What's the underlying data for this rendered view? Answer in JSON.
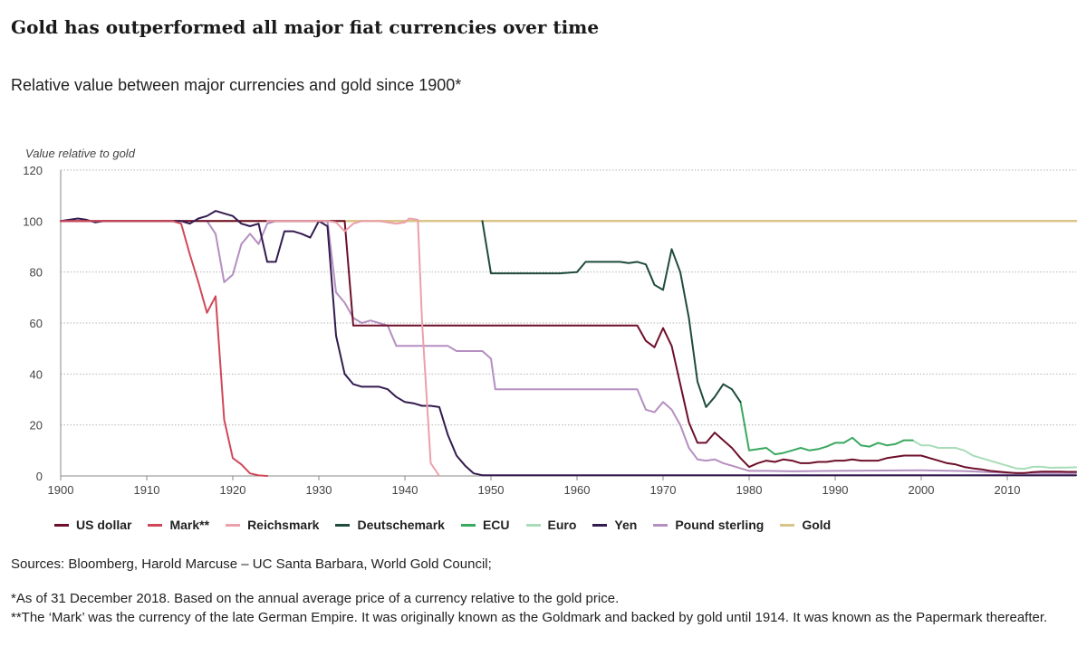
{
  "header": {
    "title": "Gold has outperformed all major fiat currencies over time",
    "subtitle": "Relative value between major currencies and gold since 1900*"
  },
  "footer": {
    "sources": "Sources: Bloomberg, Harold Marcuse – UC Santa Barbara, World Gold Council;",
    "note1": "*As of 31 December 2018. Based on the annual average price of a currency relative to the gold price.",
    "note2": "**The ‘Mark’ was the currency of the late German Empire. It was originally known as the Goldmark and backed by gold until 1914. It was known as the Papermark thereafter."
  },
  "chart_data": {
    "type": "line",
    "title": "Gold has outperformed all major fiat currencies over time",
    "subtitle": "Relative value between major currencies and gold since 1900*",
    "ylabel": "Value relative to gold",
    "xlabel": "",
    "xlim": [
      1900,
      2018
    ],
    "ylim": [
      0,
      120
    ],
    "xticks": [
      1900,
      1910,
      1920,
      1930,
      1940,
      1950,
      1960,
      1970,
      1980,
      1990,
      2000,
      2010
    ],
    "yticks": [
      0,
      20,
      40,
      60,
      80,
      100,
      120
    ],
    "grid": "horizontal dotted",
    "legend_position": "bottom",
    "series": [
      {
        "name": "Gold",
        "color": "#d9c48a",
        "points": [
          [
            1900,
            100
          ],
          [
            2018,
            100
          ]
        ]
      },
      {
        "name": "Pound sterling",
        "color": "#b48fc0",
        "points": [
          [
            1900,
            100
          ],
          [
            1914,
            100
          ],
          [
            1917,
            100
          ],
          [
            1918,
            95
          ],
          [
            1919,
            76
          ],
          [
            1920,
            79
          ],
          [
            1921,
            91
          ],
          [
            1922,
            95
          ],
          [
            1923,
            91
          ],
          [
            1924,
            99
          ],
          [
            1925,
            100
          ],
          [
            1931,
            100
          ],
          [
            1932,
            72
          ],
          [
            1933,
            68
          ],
          [
            1934,
            62
          ],
          [
            1935,
            60
          ],
          [
            1936,
            61
          ],
          [
            1937,
            60
          ],
          [
            1938,
            59
          ],
          [
            1939,
            51
          ],
          [
            1945,
            51
          ],
          [
            1946,
            49
          ],
          [
            1949,
            49
          ],
          [
            1950,
            46
          ],
          [
            1950.5,
            34
          ],
          [
            1966,
            34
          ],
          [
            1967,
            34
          ],
          [
            1968,
            26
          ],
          [
            1969,
            25
          ],
          [
            1970,
            29
          ],
          [
            1971,
            26
          ],
          [
            1972,
            20
          ],
          [
            1973,
            11
          ],
          [
            1974,
            6.5
          ],
          [
            1975,
            6
          ],
          [
            1976,
            6.5
          ],
          [
            1977,
            5
          ],
          [
            1978,
            4
          ],
          [
            1979,
            3
          ],
          [
            1980,
            2
          ],
          [
            1982,
            2
          ],
          [
            1985,
            1.8
          ],
          [
            1990,
            2
          ],
          [
            2000,
            2.2
          ],
          [
            2005,
            1.9
          ],
          [
            2010,
            1.2
          ],
          [
            2018,
            1.1
          ]
        ]
      },
      {
        "name": "Euro",
        "color": "#a8dcb8",
        "points": [
          [
            1999,
            14
          ],
          [
            2000,
            12
          ],
          [
            2001,
            12
          ],
          [
            2002,
            11
          ],
          [
            2003,
            11
          ],
          [
            2004,
            11
          ],
          [
            2005,
            10
          ],
          [
            2006,
            8
          ],
          [
            2007,
            7
          ],
          [
            2008,
            6
          ],
          [
            2009,
            5
          ],
          [
            2010,
            4
          ],
          [
            2011,
            3
          ],
          [
            2012,
            2.8
          ],
          [
            2013,
            3.6
          ],
          [
            2014,
            3.6
          ],
          [
            2015,
            3.2
          ],
          [
            2016,
            3.3
          ],
          [
            2017,
            3.3
          ],
          [
            2018,
            3.4
          ]
        ]
      },
      {
        "name": "ECU",
        "color": "#3aa860",
        "points": [
          [
            1979,
            29
          ],
          [
            1980,
            10
          ],
          [
            1982,
            11
          ],
          [
            1983,
            8.5
          ],
          [
            1984,
            9
          ],
          [
            1985,
            10
          ],
          [
            1986,
            11
          ],
          [
            1987,
            10
          ],
          [
            1988,
            10.5
          ],
          [
            1989,
            11.5
          ],
          [
            1990,
            13
          ],
          [
            1991,
            13
          ],
          [
            1992,
            15
          ],
          [
            1993,
            12
          ],
          [
            1994,
            11.5
          ],
          [
            1995,
            13
          ],
          [
            1996,
            12
          ],
          [
            1997,
            12.5
          ],
          [
            1998,
            14
          ],
          [
            1999,
            14
          ]
        ]
      },
      {
        "name": "Deutschemark",
        "color": "#1e4b3c",
        "points": [
          [
            1949,
            100
          ],
          [
            1950,
            79.5
          ],
          [
            1958,
            79.5
          ],
          [
            1960,
            80
          ],
          [
            1961,
            84
          ],
          [
            1963,
            84
          ],
          [
            1965,
            84
          ],
          [
            1966,
            83.5
          ],
          [
            1967,
            84
          ],
          [
            1968,
            83
          ],
          [
            1969,
            75
          ],
          [
            1970,
            73
          ],
          [
            1971,
            89
          ],
          [
            1972,
            80
          ],
          [
            1973,
            62
          ],
          [
            1974,
            37
          ],
          [
            1975,
            27
          ],
          [
            1976,
            31
          ],
          [
            1977,
            36
          ],
          [
            1978,
            34
          ],
          [
            1979,
            29
          ]
        ]
      },
      {
        "name": "US dollar",
        "color": "#6e0f2a",
        "points": [
          [
            1900,
            100
          ],
          [
            1933,
            100
          ],
          [
            1934,
            59
          ],
          [
            1967,
            59
          ],
          [
            1968,
            53
          ],
          [
            1969,
            50.5
          ],
          [
            1970,
            58
          ],
          [
            1971,
            51
          ],
          [
            1972,
            36
          ],
          [
            1973,
            21
          ],
          [
            1974,
            13
          ],
          [
            1975,
            13
          ],
          [
            1976,
            17
          ],
          [
            1977,
            14
          ],
          [
            1978,
            11
          ],
          [
            1979,
            7
          ],
          [
            1980,
            3.5
          ],
          [
            1981,
            5
          ],
          [
            1982,
            6
          ],
          [
            1983,
            5.5
          ],
          [
            1984,
            6.5
          ],
          [
            1985,
            6
          ],
          [
            1986,
            5
          ],
          [
            1987,
            5
          ],
          [
            1988,
            5.5
          ],
          [
            1989,
            5.5
          ],
          [
            1990,
            6
          ],
          [
            1991,
            6
          ],
          [
            1992,
            6.5
          ],
          [
            1993,
            6
          ],
          [
            1994,
            6
          ],
          [
            1995,
            6
          ],
          [
            1996,
            7
          ],
          [
            1997,
            7.5
          ],
          [
            1998,
            8
          ],
          [
            1999,
            8
          ],
          [
            2000,
            8
          ],
          [
            2001,
            7
          ],
          [
            2002,
            6
          ],
          [
            2003,
            5
          ],
          [
            2004,
            4.5
          ],
          [
            2005,
            3.5
          ],
          [
            2006,
            3
          ],
          [
            2007,
            2.6
          ],
          [
            2008,
            2
          ],
          [
            2009,
            1.7
          ],
          [
            2010,
            1.4
          ],
          [
            2011,
            1.1
          ],
          [
            2012,
            1.1
          ],
          [
            2013,
            1.5
          ],
          [
            2014,
            1.7
          ],
          [
            2015,
            1.7
          ],
          [
            2016,
            1.7
          ],
          [
            2017,
            1.6
          ],
          [
            2018,
            1.6
          ]
        ]
      },
      {
        "name": "Yen",
        "color": "#341a4f",
        "points": [
          [
            1900,
            100
          ],
          [
            1901,
            100.5
          ],
          [
            1902,
            101
          ],
          [
            1903,
            100.5
          ],
          [
            1904,
            99.5
          ],
          [
            1905,
            100
          ],
          [
            1910,
            100
          ],
          [
            1913,
            100
          ],
          [
            1914,
            100
          ],
          [
            1915,
            99
          ],
          [
            1916,
            101
          ],
          [
            1917,
            102
          ],
          [
            1918,
            104
          ],
          [
            1919,
            103
          ],
          [
            1920,
            102
          ],
          [
            1921,
            99
          ],
          [
            1922,
            98
          ],
          [
            1923,
            99
          ],
          [
            1924,
            84
          ],
          [
            1925,
            84
          ],
          [
            1926,
            96
          ],
          [
            1927,
            96
          ],
          [
            1928,
            95
          ],
          [
            1929,
            93.5
          ],
          [
            1930,
            100
          ],
          [
            1931,
            98
          ],
          [
            1932,
            55
          ],
          [
            1933,
            40
          ],
          [
            1934,
            36
          ],
          [
            1935,
            35
          ],
          [
            1936,
            35
          ],
          [
            1937,
            35
          ],
          [
            1938,
            34
          ],
          [
            1939,
            31
          ],
          [
            1940,
            29
          ],
          [
            1941,
            28.5
          ],
          [
            1942,
            27.5
          ],
          [
            1943,
            27.5
          ],
          [
            1944,
            27
          ],
          [
            1945,
            16
          ],
          [
            1946,
            8
          ],
          [
            1947,
            4
          ],
          [
            1948,
            1
          ],
          [
            1949,
            0.3
          ],
          [
            1950,
            0.3
          ],
          [
            2018,
            0.3
          ]
        ]
      },
      {
        "name": "Mark**",
        "color": "#d04858",
        "points": [
          [
            1900,
            100
          ],
          [
            1913,
            100
          ],
          [
            1914,
            99
          ],
          [
            1915,
            87
          ],
          [
            1916,
            76
          ],
          [
            1917,
            64
          ],
          [
            1918,
            70.5
          ],
          [
            1919,
            22
          ],
          [
            1920,
            7
          ],
          [
            1921,
            4.5
          ],
          [
            1922,
            1
          ],
          [
            1923,
            0.2
          ],
          [
            1924,
            0
          ]
        ]
      },
      {
        "name": "Reichsmark",
        "color": "#eba0aa",
        "points": [
          [
            1924,
            100
          ],
          [
            1931,
            100
          ],
          [
            1932,
            99.5
          ],
          [
            1933,
            96
          ],
          [
            1934,
            99
          ],
          [
            1935,
            100
          ],
          [
            1937,
            100
          ],
          [
            1938,
            99.5
          ],
          [
            1939,
            99
          ],
          [
            1940,
            99.5
          ],
          [
            1940.5,
            101
          ],
          [
            1941.5,
            100.5
          ],
          [
            1942,
            60
          ],
          [
            1943,
            5
          ],
          [
            1944,
            0
          ]
        ]
      }
    ]
  },
  "legend": [
    {
      "label": "US dollar",
      "color": "#6e0f2a"
    },
    {
      "label": "Mark**",
      "color": "#d04858"
    },
    {
      "label": "Reichsmark",
      "color": "#eba0aa"
    },
    {
      "label": "Deutschemark",
      "color": "#1e4b3c"
    },
    {
      "label": "ECU",
      "color": "#3aa860"
    },
    {
      "label": "Euro",
      "color": "#a8dcb8"
    },
    {
      "label": "Yen",
      "color": "#341a4f"
    },
    {
      "label": "Pound sterling",
      "color": "#b48fc0"
    },
    {
      "label": "Gold",
      "color": "#d9c48a"
    }
  ]
}
